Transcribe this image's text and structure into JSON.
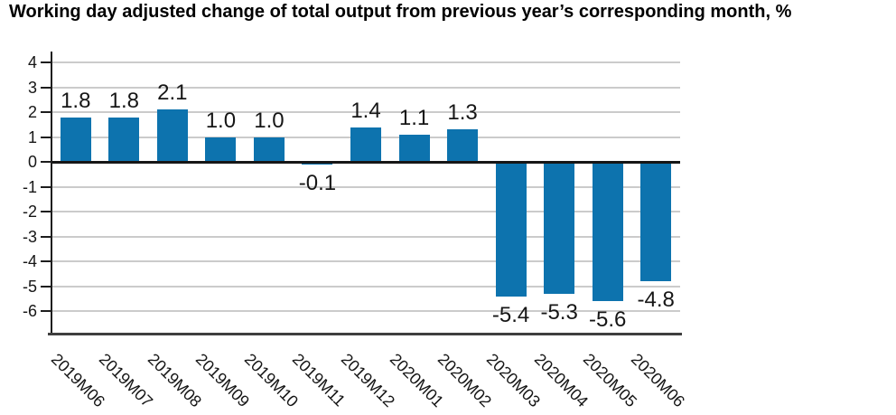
{
  "title": "Working day adjusted change of total output from previous year’s corresponding month, %",
  "chart_data": {
    "type": "bar",
    "title": "Working day adjusted change of total output from previous year’s corresponding month, %",
    "categories": [
      "2019M06",
      "2019M07",
      "2019M08",
      "2019M09",
      "2019M10",
      "2019M11",
      "2019M12",
      "2020M01",
      "2020M02",
      "2020M03",
      "2020M04",
      "2020M05",
      "2020M06"
    ],
    "values": [
      1.8,
      1.8,
      2.1,
      1.0,
      1.0,
      -0.1,
      1.4,
      1.1,
      1.3,
      -5.4,
      -5.3,
      -5.6,
      -4.8
    ],
    "value_labels": [
      "1.8",
      "1.8",
      "2.1",
      "1.0",
      "1.0",
      "-0.1",
      "1.4",
      "1.1",
      "1.3",
      "-5.4",
      "-5.3",
      "-5.6",
      "-4.8"
    ],
    "xlabel": "",
    "ylabel": "",
    "yticks": [
      4,
      3,
      2,
      1,
      0,
      -1,
      -2,
      -3,
      -4,
      -5,
      -6
    ],
    "ylim": [
      -7,
      4.4
    ],
    "grid": true,
    "legend": "none",
    "bar_color": "#0d73ae",
    "grid_color": "#cbcbcb",
    "axis_color": "#1d1d1d",
    "text_color": "#161616"
  }
}
